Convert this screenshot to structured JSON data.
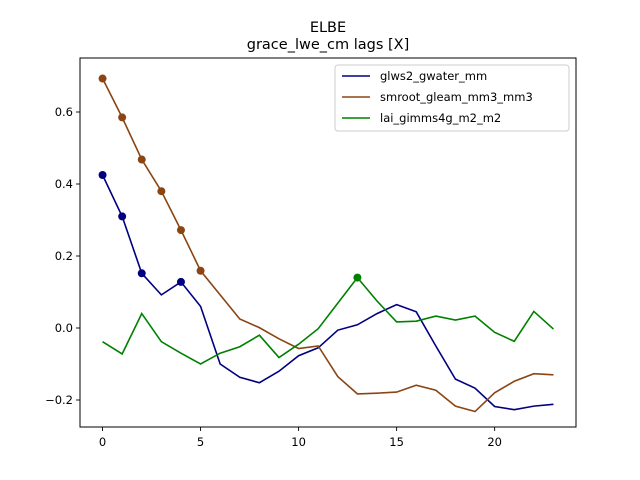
{
  "chart_data": {
    "type": "line",
    "title": "ELBE",
    "subtitle": "grace_lwe_cm lags [X]",
    "xlabel": "",
    "ylabel": "",
    "xlim": [
      -1.15,
      24.15
    ],
    "ylim": [
      -0.275,
      0.75
    ],
    "xticks": [
      0,
      5,
      10,
      15,
      20
    ],
    "yticks": [
      -0.2,
      0.0,
      0.2,
      0.4,
      0.6
    ],
    "ytick_labels": [
      "−0.2",
      "0.0",
      "0.2",
      "0.4",
      "0.6"
    ],
    "grid": false,
    "legend_position": "upper right",
    "x": [
      0,
      1,
      2,
      3,
      4,
      5,
      6,
      7,
      8,
      9,
      10,
      11,
      12,
      13,
      14,
      15,
      16,
      17,
      18,
      19,
      20,
      21,
      22,
      23
    ],
    "series": [
      {
        "name": "glws2_gwater_mm",
        "color": "#000080",
        "values": [
          0.425,
          0.31,
          0.152,
          0.092,
          0.128,
          0.06,
          -0.1,
          -0.137,
          -0.152,
          -0.12,
          -0.077,
          -0.055,
          -0.006,
          0.009,
          0.04,
          0.065,
          0.045,
          -0.05,
          -0.142,
          -0.167,
          -0.218,
          -0.227,
          -0.217,
          -0.212
        ],
        "markers": [
          0,
          1,
          2,
          4
        ]
      },
      {
        "name": "smroot_gleam_mm3_mm3",
        "color": "#8B4513",
        "values": [
          0.693,
          0.585,
          0.468,
          0.38,
          0.272,
          0.159,
          0.092,
          0.025,
          0.001,
          -0.03,
          -0.057,
          -0.05,
          -0.135,
          -0.183,
          -0.181,
          -0.178,
          -0.159,
          -0.173,
          -0.217,
          -0.232,
          -0.18,
          -0.148,
          -0.127,
          -0.13
        ],
        "markers": [
          0,
          1,
          2,
          3,
          4,
          5
        ]
      },
      {
        "name": "lai_gimms4g_m2_m2",
        "color": "#008000",
        "values": [
          -0.038,
          -0.072,
          0.04,
          -0.038,
          -0.07,
          -0.1,
          -0.07,
          -0.052,
          -0.02,
          -0.082,
          -0.045,
          -0.002,
          0.069,
          0.14,
          0.075,
          0.017,
          0.019,
          0.033,
          0.022,
          0.033,
          -0.012,
          -0.037,
          0.046,
          -0.003
        ],
        "markers": [
          13
        ]
      }
    ]
  }
}
